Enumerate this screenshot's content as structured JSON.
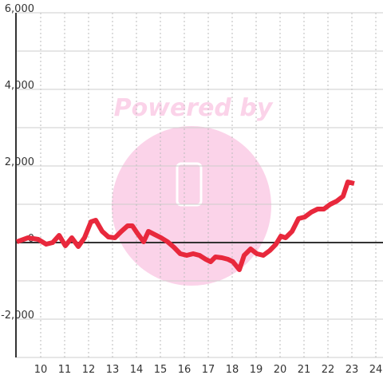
{
  "chart_data": {
    "type": "line",
    "watermark": "Powered by",
    "x": [
      9.0,
      9.47,
      9.9,
      10.23,
      10.5,
      10.77,
      11.03,
      11.3,
      11.57,
      11.83,
      12.1,
      12.3,
      12.57,
      12.83,
      13.1,
      13.37,
      13.63,
      13.83,
      14.03,
      14.3,
      14.5,
      14.77,
      15.03,
      15.3,
      15.57,
      15.83,
      16.1,
      16.37,
      16.63,
      16.9,
      17.1,
      17.3,
      17.57,
      17.83,
      18.03,
      18.3,
      18.5,
      18.77,
      19.03,
      19.3,
      19.57,
      19.83,
      20.03,
      20.23,
      20.5,
      20.77,
      21.03,
      21.3,
      21.57,
      21.83,
      22.1,
      22.37,
      22.63,
      22.83,
      23.1
    ],
    "series": [
      {
        "color": "#e8283c",
        "values": [
          20,
          125,
          83,
          -42,
          0,
          188,
          -83,
          125,
          -104,
          125,
          542,
          583,
          292,
          146,
          125,
          292,
          438,
          438,
          250,
          21,
          292,
          208,
          125,
          21,
          -125,
          -292,
          -333,
          -292,
          -333,
          -438,
          -500,
          -375,
          -396,
          -438,
          -500,
          -708,
          -333,
          -167,
          -292,
          -333,
          -208,
          -42,
          167,
          125,
          292,
          625,
          667,
          792,
          875,
          875,
          1000,
          1083,
          1208,
          1583,
          1542
        ]
      }
    ],
    "xlim": [
      9,
      24.3
    ],
    "xticks": [
      10,
      11,
      12,
      13,
      14,
      15,
      16,
      17,
      18,
      19,
      20,
      21,
      22,
      23,
      24
    ],
    "ylim": [
      -3000,
      6000
    ],
    "yticks": [
      {
        "value": -2000,
        "label": "-2,000"
      },
      0,
      {
        "value": 2000,
        "label": "2,000"
      },
      {
        "value": 4000,
        "label": "4,000"
      },
      {
        "value": 6000,
        "label": "6,000"
      }
    ],
    "y_minor_ticks": [
      -3000,
      -1000,
      1000,
      3000,
      5000
    ],
    "grid": true
  }
}
